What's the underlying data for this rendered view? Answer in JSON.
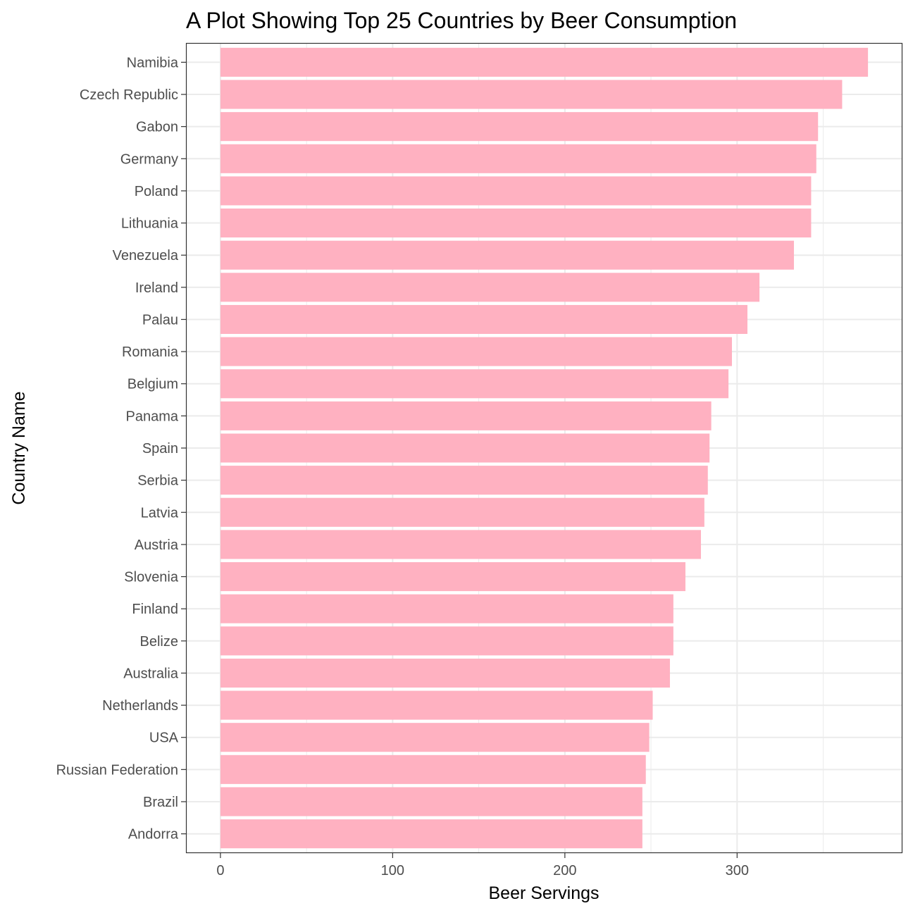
{
  "chart_data": {
    "type": "bar",
    "orientation": "horizontal",
    "title": "A Plot Showing Top 25 Countries by Beer Consumption",
    "xlabel": "Beer Servings",
    "ylabel": "Country Name",
    "xlim": [
      -20,
      396
    ],
    "x_ticks": [
      0,
      100,
      200,
      300
    ],
    "grid": true,
    "legend": "none",
    "bar_color": "#FFB1C1",
    "categories": [
      "Namibia",
      "Czech Republic",
      "Gabon",
      "Germany",
      "Poland",
      "Lithuania",
      "Venezuela",
      "Ireland",
      "Palau",
      "Romania",
      "Belgium",
      "Panama",
      "Spain",
      "Serbia",
      "Latvia",
      "Austria",
      "Slovenia",
      "Finland",
      "Belize",
      "Australia",
      "Netherlands",
      "USA",
      "Russian Federation",
      "Brazil",
      "Andorra"
    ],
    "values": [
      376,
      361,
      347,
      346,
      343,
      343,
      333,
      313,
      306,
      297,
      295,
      285,
      284,
      283,
      281,
      279,
      270,
      263,
      263,
      261,
      251,
      249,
      247,
      245,
      245
    ]
  }
}
